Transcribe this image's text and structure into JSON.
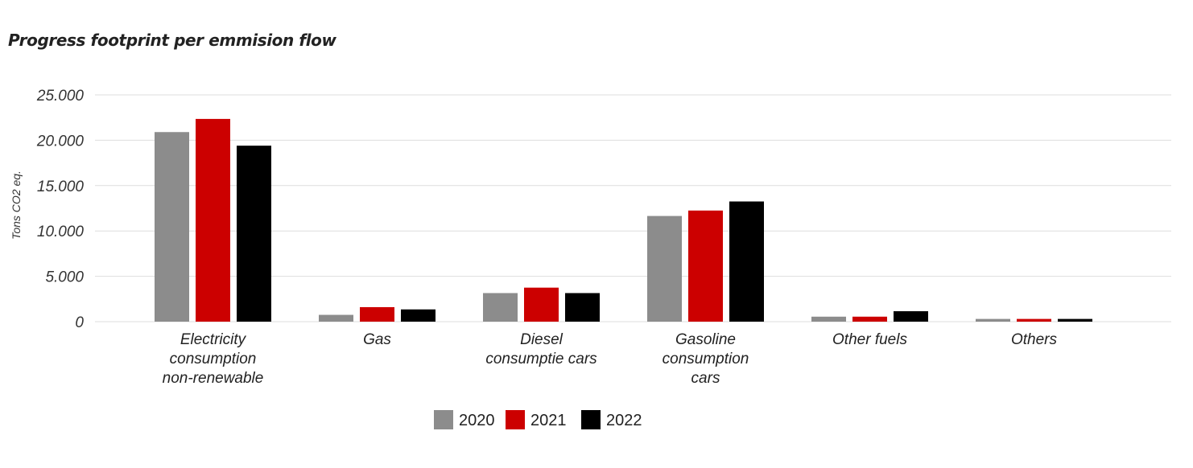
{
  "chart_data": {
    "type": "bar",
    "title": "Progress footprint per emmision flow",
    "ylabel": "Tons CO2 eq.",
    "xlabel": "",
    "categories": [
      [
        "Electricity",
        "consumption",
        "non-renewable"
      ],
      [
        "Gas"
      ],
      [
        "Diesel",
        "consumptie cars"
      ],
      [
        "Gasoline",
        "consumption",
        "cars"
      ],
      [
        "Other fuels"
      ],
      [
        "Others"
      ]
    ],
    "series": [
      {
        "name": "2020",
        "color": "#8c8c8c",
        "values": [
          20900,
          750,
          3150,
          11650,
          550,
          300
        ]
      },
      {
        "name": "2021",
        "color": "#cc0000",
        "values": [
          22350,
          1600,
          3750,
          12250,
          550,
          300
        ]
      },
      {
        "name": "2022",
        "color": "#000000",
        "values": [
          19400,
          1350,
          3150,
          13250,
          1150,
          300
        ]
      }
    ],
    "ylim": [
      0,
      25000
    ],
    "yticks": [
      {
        "value": 0,
        "label": "0"
      },
      {
        "value": 5000,
        "label": "5.000"
      },
      {
        "value": 10000,
        "label": "10.000"
      },
      {
        "value": 15000,
        "label": "15.000"
      },
      {
        "value": 20000,
        "label": "20.000"
      },
      {
        "value": 25000,
        "label": "25.000"
      }
    ],
    "grid": true,
    "legend_position": "bottom"
  }
}
